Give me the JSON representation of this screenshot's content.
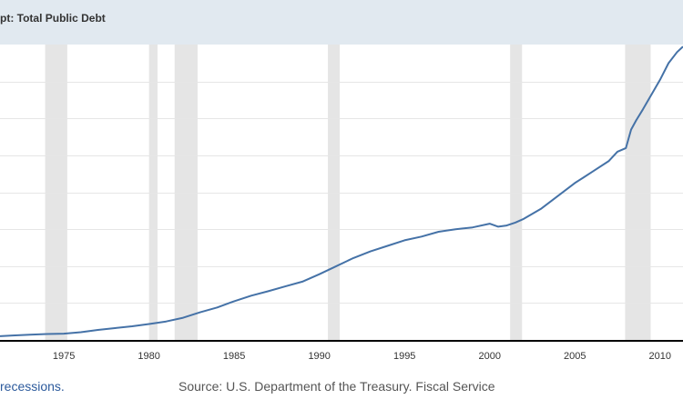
{
  "title": "pt: Total Public Debt",
  "footer": {
    "recessions_link": "recessions.",
    "source": "Source: U.S. Department of the Treasury. Fiscal Service"
  },
  "colors": {
    "header_bg": "#e1e9f0",
    "line": "#4572a7",
    "recession": "#e5e5e5",
    "grid": "#e6e6e6",
    "axis": "#000000",
    "link": "#2c5a9c"
  },
  "chart_data": {
    "type": "line",
    "title": "pt: Total Public Debt",
    "xlabel": "",
    "ylabel": "",
    "x_ticks": [
      1975,
      1980,
      1985,
      1990,
      1995,
      2000,
      2005,
      2010
    ],
    "xlim": [
      1971.25,
      2011.35
    ],
    "ylim": [
      0,
      8
    ],
    "y_gridlines": [
      1,
      2,
      3,
      4,
      5,
      6,
      7
    ],
    "grid": true,
    "legend": "none",
    "recessions": [
      [
        1973.9,
        1975.2
      ],
      [
        1980.0,
        1980.5
      ],
      [
        1981.5,
        1982.85
      ],
      [
        1990.5,
        1991.2
      ],
      [
        2001.2,
        2001.9
      ],
      [
        2007.95,
        2009.45
      ]
    ],
    "series": [
      {
        "x": [
          1971.25,
          1972,
          1973,
          1974,
          1975,
          1976,
          1977,
          1978,
          1979,
          1980,
          1981,
          1982,
          1983,
          1984,
          1985,
          1986,
          1987,
          1988,
          1989,
          1990,
          1991,
          1992,
          1993,
          1994,
          1995,
          1996,
          1997,
          1998,
          1999,
          2000,
          2000.5,
          2001,
          2001.5,
          2002,
          2003,
          2004,
          2005,
          2005.5,
          2006,
          2007,
          2007.5,
          2008,
          2008.3,
          2008.6,
          2009,
          2009.5,
          2010,
          2010.5,
          2011,
          2011.35
        ],
        "y": [
          0.1,
          0.12,
          0.14,
          0.16,
          0.17,
          0.21,
          0.27,
          0.32,
          0.37,
          0.43,
          0.5,
          0.6,
          0.75,
          0.88,
          1.05,
          1.2,
          1.32,
          1.45,
          1.58,
          1.78,
          2.0,
          2.22,
          2.4,
          2.55,
          2.7,
          2.8,
          2.93,
          3.0,
          3.05,
          3.15,
          3.07,
          3.1,
          3.18,
          3.28,
          3.55,
          3.9,
          4.25,
          4.4,
          4.55,
          4.85,
          5.1,
          5.2,
          5.7,
          5.95,
          6.25,
          6.65,
          7.05,
          7.5,
          7.8,
          7.95
        ]
      }
    ]
  }
}
